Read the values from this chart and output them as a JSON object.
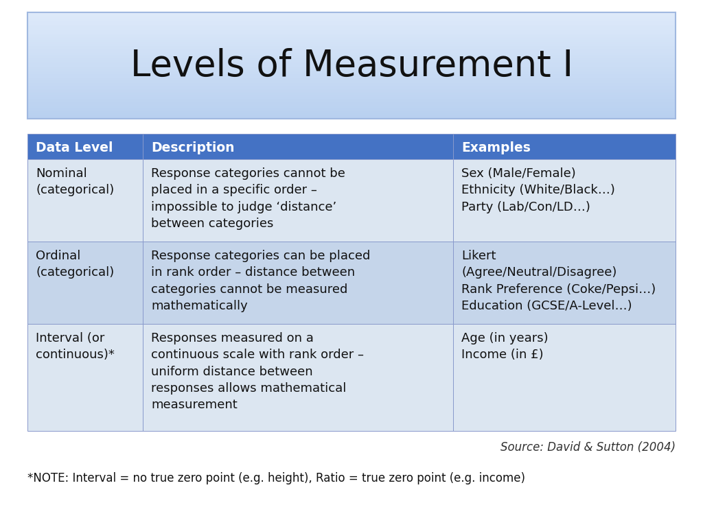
{
  "title": "Levels of Measurement I",
  "title_fontsize": 38,
  "title_bg_color_top": "#dce8f8",
  "title_bg_color": "#c5d5f0",
  "title_border_color": "#a0b8e0",
  "bg_color": "#ffffff",
  "header_bg_color": "#4472c4",
  "header_text_color": "#ffffff",
  "header_fontsize": 13.5,
  "headers": [
    "Data Level",
    "Description",
    "Examples"
  ],
  "row_bg_colors": [
    "#dce6f1",
    "#c5d5ea"
  ],
  "cell_text_color": "#111111",
  "cell_fontsize": 13,
  "rows": [
    {
      "level": "Nominal\n(categorical)",
      "description": "Response categories cannot be\nplaced in a specific order –\nimpossible to judge ‘distance’\nbetween categories",
      "examples": "Sex (Male/Female)\nEthnicity (White/Black…)\nParty (Lab/Con/LD…)"
    },
    {
      "level": "Ordinal\n(categorical)",
      "description": "Response categories can be placed\nin rank order – distance between\ncategories cannot be measured\nmathematically",
      "examples": "Likert\n(Agree/Neutral/Disagree)\nRank Preference (Coke/Pepsi…)\nEducation (GCSE/A-Level…)"
    },
    {
      "level": "Interval (or\ncontinuous)*",
      "description": "Responses measured on a\ncontinuous scale with rank order –\nuniform distance between\nresponses allows mathematical\nmeasurement",
      "examples": "Age (in years)\nIncome (in £)"
    }
  ],
  "source_text": "Source: David & Sutton (2004)",
  "footnote_text": "*NOTE: Interval = no true zero point (e.g. height), Ratio = true zero point (e.g. income)"
}
